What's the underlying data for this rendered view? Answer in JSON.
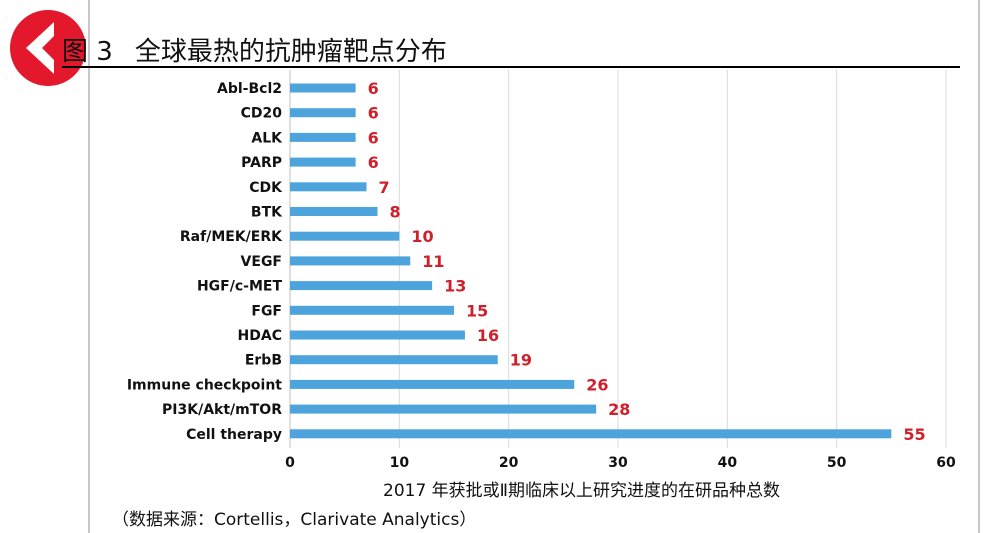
{
  "title": {
    "figure_number": "图 3",
    "text": "全球最热的抗肿瘤靶点分布"
  },
  "badge": {
    "icon": "back-arrow-icon",
    "color": "#e3182d"
  },
  "source_note": "（数据来源：Cortellis，Clarivate  Analytics）",
  "colors": {
    "bar": "#4da3dc",
    "value_label": "#d0202c",
    "grid": "#d9d9d9"
  },
  "chart_data": {
    "type": "bar",
    "orientation": "horizontal",
    "categories": [
      "Abl-Bcl2",
      "CD20",
      "ALK",
      "PARP",
      "CDK",
      "BTK",
      "Raf/MEK/ERK",
      "VEGF",
      "HGF/c-MET",
      "FGF",
      "HDAC",
      "ErbB",
      "Immune checkpoint",
      "PI3K/Akt/mTOR",
      "Cell therapy"
    ],
    "values": [
      6,
      6,
      6,
      6,
      7,
      8,
      10,
      11,
      13,
      15,
      16,
      19,
      26,
      28,
      55
    ],
    "data_labels": true,
    "xlabel": "2017 年获批或Ⅱ期临床以上研究进度的在研品种总数",
    "ylabel": "",
    "xlim": [
      0,
      60
    ],
    "xticks": [
      0,
      10,
      20,
      30,
      40,
      50,
      60
    ],
    "grid": "vertical",
    "legend": "none"
  }
}
